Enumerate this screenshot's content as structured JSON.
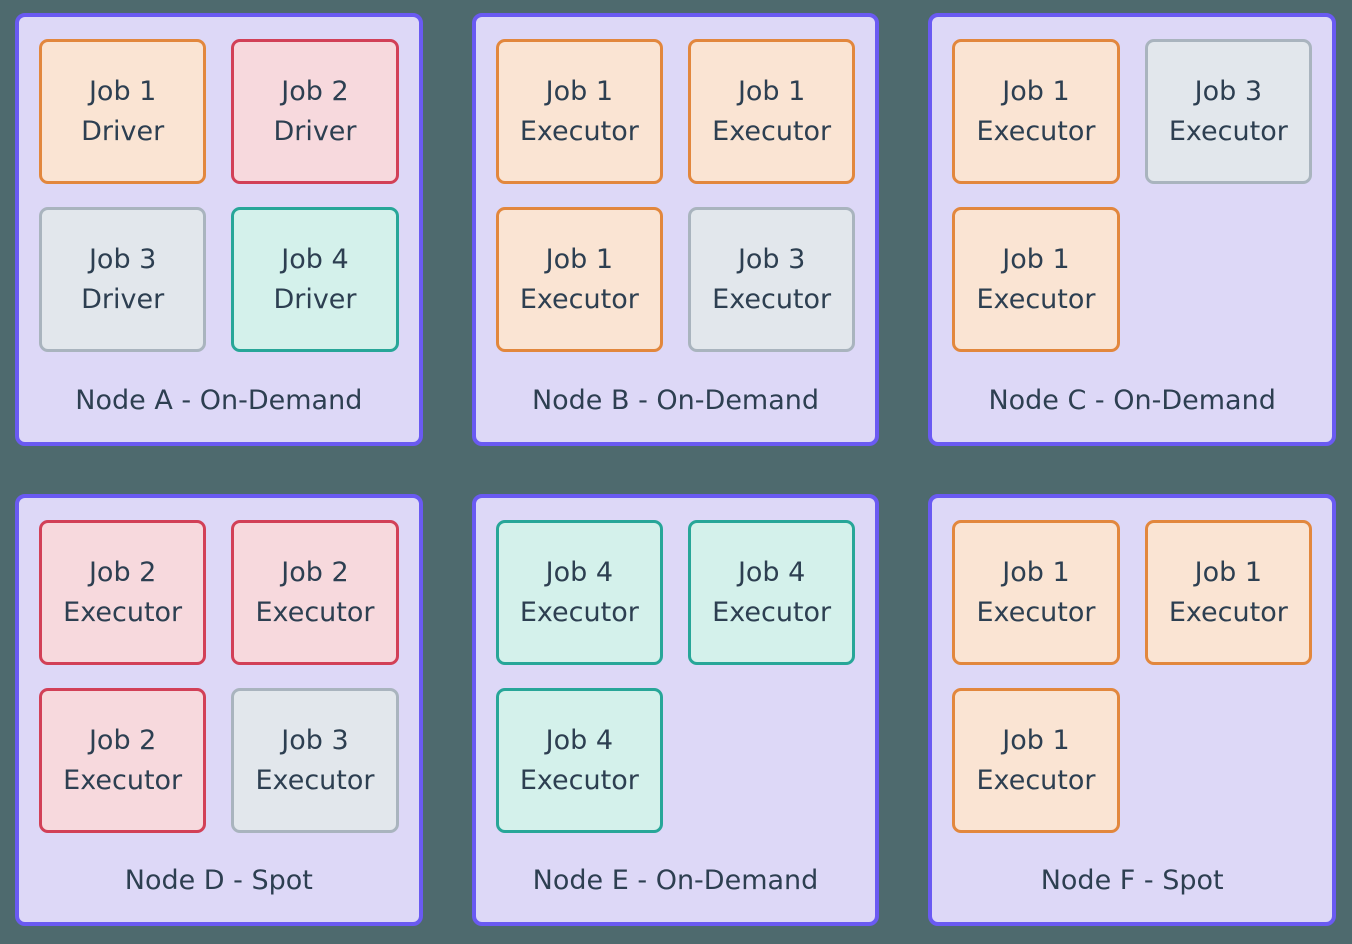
{
  "diagram": {
    "palette": {
      "background": "#4E6A6E",
      "node_border": "#6A5AF2",
      "node_fill": "#DDD8F7",
      "text": "#2D3F51"
    },
    "job_styles": {
      "job1": {
        "border": "#E2873D",
        "fill": "#FAE4D3"
      },
      "job2": {
        "border": "#D24057",
        "fill": "#F7D9DD"
      },
      "job3": {
        "border": "#A9B4BE",
        "fill": "#E2E7EC"
      },
      "job4": {
        "border": "#27A698",
        "fill": "#D4F1EB"
      }
    },
    "nodes": [
      {
        "label": "Node A - On-Demand",
        "jobs": [
          {
            "title": "Job 1",
            "role": "Driver",
            "style": "job1"
          },
          {
            "title": "Job 2",
            "role": "Driver",
            "style": "job2"
          },
          {
            "title": "Job 3",
            "role": "Driver",
            "style": "job3"
          },
          {
            "title": "Job 4",
            "role": "Driver",
            "style": "job4"
          }
        ]
      },
      {
        "label": "Node B - On-Demand",
        "jobs": [
          {
            "title": "Job 1",
            "role": "Executor",
            "style": "job1"
          },
          {
            "title": "Job 1",
            "role": "Executor",
            "style": "job1"
          },
          {
            "title": "Job 1",
            "role": "Executor",
            "style": "job1"
          },
          {
            "title": "Job 3",
            "role": "Executor",
            "style": "job3"
          }
        ]
      },
      {
        "label": "Node C - On-Demand",
        "jobs": [
          {
            "title": "Job 1",
            "role": "Executor",
            "style": "job1"
          },
          {
            "title": "Job 3",
            "role": "Executor",
            "style": "job3"
          },
          {
            "title": "Job 1",
            "role": "Executor",
            "style": "job1"
          },
          null
        ]
      },
      {
        "label": "Node D - Spot",
        "jobs": [
          {
            "title": "Job 2",
            "role": "Executor",
            "style": "job2"
          },
          {
            "title": "Job 2",
            "role": "Executor",
            "style": "job2"
          },
          {
            "title": "Job 2",
            "role": "Executor",
            "style": "job2"
          },
          {
            "title": "Job 3",
            "role": "Executor",
            "style": "job3"
          }
        ]
      },
      {
        "label": "Node E - On-Demand",
        "jobs": [
          {
            "title": "Job 4",
            "role": "Executor",
            "style": "job4"
          },
          {
            "title": "Job 4",
            "role": "Executor",
            "style": "job4"
          },
          {
            "title": "Job 4",
            "role": "Executor",
            "style": "job4"
          },
          null
        ]
      },
      {
        "label": "Node F - Spot",
        "jobs": [
          {
            "title": "Job 1",
            "role": "Executor",
            "style": "job1"
          },
          {
            "title": "Job 1",
            "role": "Executor",
            "style": "job1"
          },
          {
            "title": "Job 1",
            "role": "Executor",
            "style": "job1"
          },
          null
        ]
      }
    ]
  }
}
